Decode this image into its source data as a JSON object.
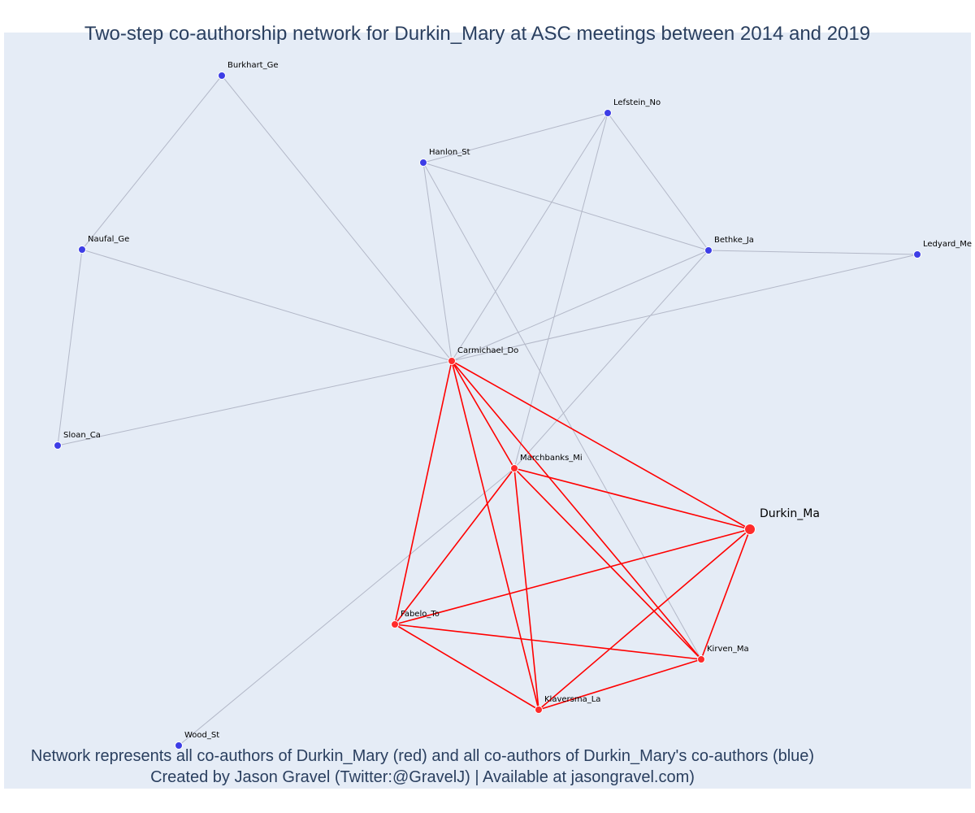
{
  "title": "Two-step co-authorship network for Durkin_Mary at ASC meetings between 2014 and 2019",
  "caption": {
    "line1": "Network represents all co-authors of Durkin_Mary (red) and all co-authors of Durkin_Mary's co-authors (blue)",
    "line2": "Created by Jason Gravel (Twitter:@GravelJ) | Available at jasongravel.com)"
  },
  "colors": {
    "background": "#e5ecf6",
    "coauthor_node": "#ff2b2b",
    "second_step_node": "#3d3de6",
    "coauthor_edge": "#ff0000",
    "second_step_edge": "#b3b8c8",
    "text": "#2a3f5f"
  },
  "nodes": [
    {
      "id": "Burkhart_Ge",
      "label": "Burkhart_Ge",
      "group": "second_step"
    },
    {
      "id": "Lefstein_No",
      "label": "Lefstein_No",
      "group": "second_step"
    },
    {
      "id": "Hanlon_St",
      "label": "Hanlon_St",
      "group": "second_step"
    },
    {
      "id": "Naufal_Ge",
      "label": "Naufal_Ge",
      "group": "second_step"
    },
    {
      "id": "Bethke_Ja",
      "label": "Bethke_Ja",
      "group": "second_step"
    },
    {
      "id": "Ledyard_Me",
      "label": "Ledyard_Me",
      "group": "second_step"
    },
    {
      "id": "Carmichael_Do",
      "label": "Carmichael_Do",
      "group": "coauthor"
    },
    {
      "id": "Sloan_Ca",
      "label": "Sloan_Ca",
      "group": "second_step"
    },
    {
      "id": "Marchbanks_Mi",
      "label": "Marchbanks_Mi",
      "group": "coauthor"
    },
    {
      "id": "Durkin_Ma",
      "label": "Durkin_Ma",
      "group": "focal"
    },
    {
      "id": "Fabelo_To",
      "label": "Fabelo_To",
      "group": "coauthor"
    },
    {
      "id": "Kirven_Ma",
      "label": "Kirven_Ma",
      "group": "coauthor"
    },
    {
      "id": "Klaversma_La",
      "label": "Klaversma_La",
      "group": "coauthor"
    },
    {
      "id": "Wood_St",
      "label": "Wood_St",
      "group": "second_step"
    }
  ],
  "edges": [
    {
      "source": "Burkhart_Ge",
      "target": "Naufal_Ge",
      "type": "second_step"
    },
    {
      "source": "Burkhart_Ge",
      "target": "Carmichael_Do",
      "type": "second_step"
    },
    {
      "source": "Naufal_Ge",
      "target": "Sloan_Ca",
      "type": "second_step"
    },
    {
      "source": "Naufal_Ge",
      "target": "Carmichael_Do",
      "type": "second_step"
    },
    {
      "source": "Sloan_Ca",
      "target": "Carmichael_Do",
      "type": "second_step"
    },
    {
      "source": "Hanlon_St",
      "target": "Lefstein_No",
      "type": "second_step"
    },
    {
      "source": "Hanlon_St",
      "target": "Bethke_Ja",
      "type": "second_step"
    },
    {
      "source": "Hanlon_St",
      "target": "Carmichael_Do",
      "type": "second_step"
    },
    {
      "source": "Hanlon_St",
      "target": "Kirven_Ma",
      "type": "second_step"
    },
    {
      "source": "Lefstein_No",
      "target": "Bethke_Ja",
      "type": "second_step"
    },
    {
      "source": "Lefstein_No",
      "target": "Carmichael_Do",
      "type": "second_step"
    },
    {
      "source": "Lefstein_No",
      "target": "Marchbanks_Mi",
      "type": "second_step"
    },
    {
      "source": "Bethke_Ja",
      "target": "Ledyard_Me",
      "type": "second_step"
    },
    {
      "source": "Bethke_Ja",
      "target": "Carmichael_Do",
      "type": "second_step"
    },
    {
      "source": "Bethke_Ja",
      "target": "Marchbanks_Mi",
      "type": "second_step"
    },
    {
      "source": "Ledyard_Me",
      "target": "Carmichael_Do",
      "type": "second_step"
    },
    {
      "source": "Wood_St",
      "target": "Marchbanks_Mi",
      "type": "second_step"
    },
    {
      "source": "Carmichael_Do",
      "target": "Marchbanks_Mi",
      "type": "coauthor"
    },
    {
      "source": "Carmichael_Do",
      "target": "Durkin_Ma",
      "type": "coauthor"
    },
    {
      "source": "Carmichael_Do",
      "target": "Fabelo_To",
      "type": "coauthor"
    },
    {
      "source": "Carmichael_Do",
      "target": "Kirven_Ma",
      "type": "coauthor"
    },
    {
      "source": "Carmichael_Do",
      "target": "Klaversma_La",
      "type": "coauthor"
    },
    {
      "source": "Marchbanks_Mi",
      "target": "Durkin_Ma",
      "type": "coauthor"
    },
    {
      "source": "Marchbanks_Mi",
      "target": "Fabelo_To",
      "type": "coauthor"
    },
    {
      "source": "Marchbanks_Mi",
      "target": "Kirven_Ma",
      "type": "coauthor"
    },
    {
      "source": "Marchbanks_Mi",
      "target": "Klaversma_La",
      "type": "coauthor"
    },
    {
      "source": "Durkin_Ma",
      "target": "Fabelo_To",
      "type": "coauthor"
    },
    {
      "source": "Durkin_Ma",
      "target": "Kirven_Ma",
      "type": "coauthor"
    },
    {
      "source": "Durkin_Ma",
      "target": "Klaversma_La",
      "type": "coauthor"
    },
    {
      "source": "Fabelo_To",
      "target": "Kirven_Ma",
      "type": "coauthor"
    },
    {
      "source": "Fabelo_To",
      "target": "Klaversma_La",
      "type": "coauthor"
    },
    {
      "source": "Kirven_Ma",
      "target": "Klaversma_La",
      "type": "coauthor"
    }
  ]
}
